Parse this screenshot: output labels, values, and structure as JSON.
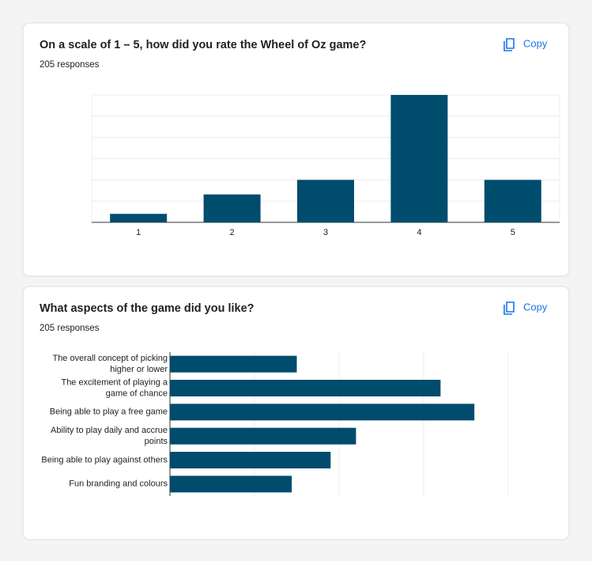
{
  "cards": [
    {
      "action": "Copy"
    },
    {
      "action": "Copy"
    }
  ],
  "chart_data": [
    {
      "type": "bar",
      "title": "On a scale of 1 – 5, how did you rate the Wheel of Oz game?",
      "subtitle": "205 responses",
      "categories": [
        "1",
        "2",
        "3",
        "4",
        "5"
      ],
      "values": [
        7,
        23,
        35,
        105,
        35
      ],
      "color": "#004c6d",
      "ylim": [
        0,
        105
      ],
      "ygrid": [
        0,
        17.5,
        35,
        52.5,
        70,
        87.5,
        105
      ]
    },
    {
      "type": "hbar",
      "title": "What aspects of the game did you like?",
      "subtitle": "205 responses",
      "categories": [
        "The overall concept of picking higher or lower",
        "The excitement of playing a game of chance",
        "Being able to play a free game",
        "Ability to play daily and accrue points",
        "Being able to play against others",
        "Fun branding and colours"
      ],
      "values": [
        75,
        160,
        180,
        110,
        95,
        72
      ],
      "color": "#004c6d",
      "xlim": [
        0,
        200
      ],
      "xgrid": [
        0,
        50,
        100,
        150,
        200
      ]
    }
  ]
}
